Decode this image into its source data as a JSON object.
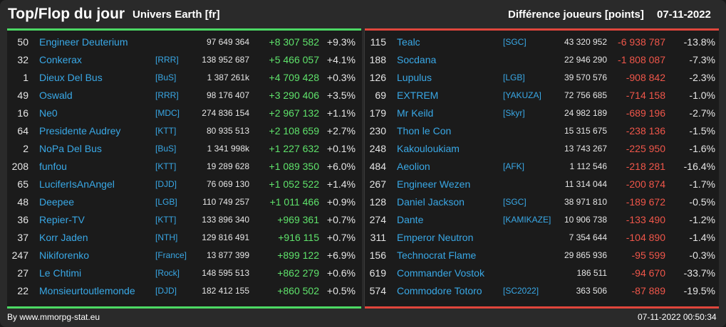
{
  "header": {
    "title": "Top/Flop du jour",
    "subtitle": "Univers Earth [fr]",
    "diff_label": "Différence joueurs [points]",
    "date": "07-11-2022"
  },
  "colors": {
    "accent_top": "#4cd964",
    "accent_flop": "#e0463c",
    "name": "#39a8e6"
  },
  "top": [
    {
      "rank": "50",
      "name": "Engineer Deuterium",
      "guild": "",
      "points": "97 649 364",
      "diff": "+8 307 582",
      "pct": "+9.3%"
    },
    {
      "rank": "32",
      "name": "Conkerax",
      "guild": "[RRR]",
      "points": "138 952 687",
      "diff": "+5 466 057",
      "pct": "+4.1%"
    },
    {
      "rank": "1",
      "name": "Dieux Del Bus",
      "guild": "[BuS]",
      "points": "1 387 261k",
      "diff": "+4 709 428",
      "pct": "+0.3%"
    },
    {
      "rank": "49",
      "name": "Oswald",
      "guild": "[RRR]",
      "points": "98 176 407",
      "diff": "+3 290 406",
      "pct": "+3.5%"
    },
    {
      "rank": "16",
      "name": "Ne0",
      "guild": "[MDC]",
      "points": "274 836 154",
      "diff": "+2 967 132",
      "pct": "+1.1%"
    },
    {
      "rank": "64",
      "name": "Presidente Audrey",
      "guild": "[KTT]",
      "points": "80 935 513",
      "diff": "+2 108 659",
      "pct": "+2.7%"
    },
    {
      "rank": "2",
      "name": "NoPa Del Bus",
      "guild": "[BuS]",
      "points": "1 341 998k",
      "diff": "+1 227 632",
      "pct": "+0.1%"
    },
    {
      "rank": "208",
      "name": "funfou",
      "guild": "[KTT]",
      "points": "19 289 628",
      "diff": "+1 089 350",
      "pct": "+6.0%"
    },
    {
      "rank": "65",
      "name": "LuciferIsAnAngel",
      "guild": "[DJD]",
      "points": "76 069 130",
      "diff": "+1 052 522",
      "pct": "+1.4%"
    },
    {
      "rank": "48",
      "name": "Deepee",
      "guild": "[LGB]",
      "points": "110 749 257",
      "diff": "+1 011 466",
      "pct": "+0.9%"
    },
    {
      "rank": "36",
      "name": "Repier-TV",
      "guild": "[KTT]",
      "points": "133 896 340",
      "diff": "+969 361",
      "pct": "+0.7%"
    },
    {
      "rank": "37",
      "name": "Korr Jaden",
      "guild": "[NTH]",
      "points": "129 816 491",
      "diff": "+916 115",
      "pct": "+0.7%"
    },
    {
      "rank": "247",
      "name": "Nikiforenko",
      "guild": "[France]",
      "points": "13 877 399",
      "diff": "+899 122",
      "pct": "+6.9%"
    },
    {
      "rank": "27",
      "name": "Le Chtimi",
      "guild": "[Rock]",
      "points": "148 595 513",
      "diff": "+862 279",
      "pct": "+0.6%"
    },
    {
      "rank": "22",
      "name": "Monsieurtoutlemonde",
      "guild": "[DJD]",
      "points": "182 412 155",
      "diff": "+860 502",
      "pct": "+0.5%"
    }
  ],
  "flop": [
    {
      "rank": "115",
      "name": "Tealc",
      "guild": "[SGC]",
      "points": "43 320 952",
      "diff": "-6 938 787",
      "pct": "-13.8%"
    },
    {
      "rank": "188",
      "name": "Socdana",
      "guild": "",
      "points": "22 946 290",
      "diff": "-1 808 087",
      "pct": "-7.3%"
    },
    {
      "rank": "126",
      "name": "Lupulus",
      "guild": "[LGB]",
      "points": "39 570 576",
      "diff": "-908 842",
      "pct": "-2.3%"
    },
    {
      "rank": "69",
      "name": "EXTREM",
      "guild": "[YAKUZA]",
      "points": "72 756 685",
      "diff": "-714 158",
      "pct": "-1.0%"
    },
    {
      "rank": "179",
      "name": "Mr Keild",
      "guild": "[Skyr]",
      "points": "24 982 189",
      "diff": "-689 196",
      "pct": "-2.7%"
    },
    {
      "rank": "230",
      "name": "Thon le Con",
      "guild": "",
      "points": "15 315 675",
      "diff": "-238 136",
      "pct": "-1.5%"
    },
    {
      "rank": "248",
      "name": "Kakouloukiam",
      "guild": "",
      "points": "13 743 267",
      "diff": "-225 950",
      "pct": "-1.6%"
    },
    {
      "rank": "484",
      "name": "Aeolion",
      "guild": "[AFK]",
      "points": "1 112 546",
      "diff": "-218 281",
      "pct": "-16.4%"
    },
    {
      "rank": "267",
      "name": "Engineer Wezen",
      "guild": "",
      "points": "11 314 044",
      "diff": "-200 874",
      "pct": "-1.7%"
    },
    {
      "rank": "128",
      "name": "Daniel Jackson",
      "guild": "[SGC]",
      "points": "38 971 810",
      "diff": "-189 672",
      "pct": "-0.5%"
    },
    {
      "rank": "274",
      "name": "Dante",
      "guild": "[KAMIKAZE]",
      "points": "10 906 738",
      "diff": "-133 490",
      "pct": "-1.2%"
    },
    {
      "rank": "311",
      "name": "Emperor Neutron",
      "guild": "",
      "points": "7 354 644",
      "diff": "-104 890",
      "pct": "-1.4%"
    },
    {
      "rank": "156",
      "name": "Technocrat Flame",
      "guild": "",
      "points": "29 865 936",
      "diff": "-95 599",
      "pct": "-0.3%"
    },
    {
      "rank": "619",
      "name": "Commander Vostok",
      "guild": "",
      "points": "186 511",
      "diff": "-94 670",
      "pct": "-33.7%"
    },
    {
      "rank": "574",
      "name": "Commodore Totoro",
      "guild": "[SC2022]",
      "points": "363 506",
      "diff": "-87 889",
      "pct": "-19.5%"
    }
  ],
  "footer": {
    "source": "By www.mmorpg-stat.eu",
    "timestamp": "07-11-2022 00:50:34"
  }
}
